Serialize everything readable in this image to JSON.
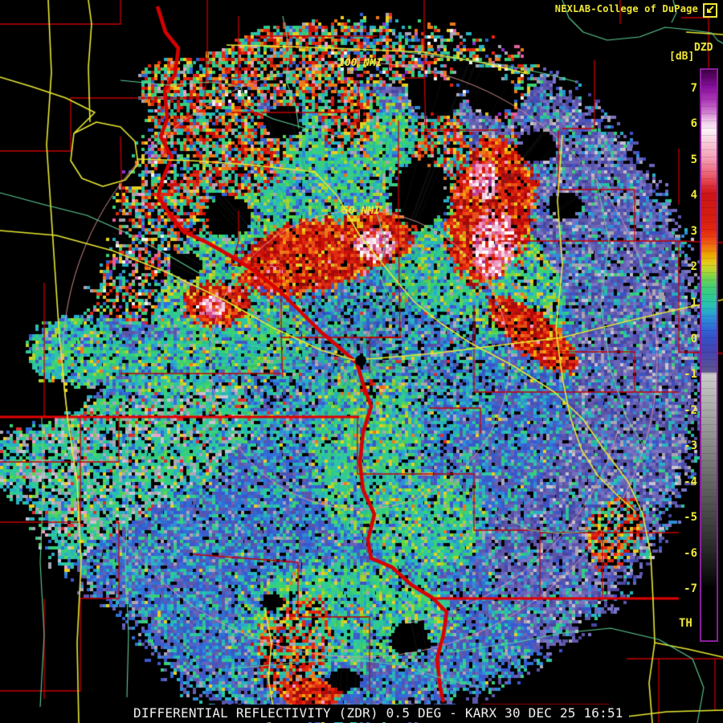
{
  "header": {
    "brand": "NEXLAB-College of DuPage",
    "brand_icon": "cursor-box-icon",
    "brand_color": "#f0e838"
  },
  "colorbar": {
    "title": "DZD",
    "units": "[dB]",
    "footer": "TH",
    "ticks": [
      "7",
      "6",
      "5",
      "4",
      "3",
      "2",
      "1",
      "0",
      "-1",
      "-2",
      "-3",
      "-4",
      "-5",
      "-6",
      "-7"
    ],
    "border_color": "#8a1f9e",
    "gradient": [
      {
        "p": 0,
        "c": "#3c0040"
      },
      {
        "p": 1.8,
        "c": "#6a0878"
      },
      {
        "p": 3.1,
        "c": "#8a10a0"
      },
      {
        "p": 5.6,
        "c": "#b040b8"
      },
      {
        "p": 7.5,
        "c": "#d080d0"
      },
      {
        "p": 9.0,
        "c": "#f0c8e8"
      },
      {
        "p": 10.6,
        "c": "#fdf2f8"
      },
      {
        "p": 12.4,
        "c": "#f8d0dc"
      },
      {
        "p": 15.6,
        "c": "#f49cb4"
      },
      {
        "p": 18.7,
        "c": "#e85868"
      },
      {
        "p": 20.6,
        "c": "#d82830"
      },
      {
        "p": 21.8,
        "c": "#cc1418"
      },
      {
        "p": 25.6,
        "c": "#d41c10"
      },
      {
        "p": 28.2,
        "c": "#e22810"
      },
      {
        "p": 30.0,
        "c": "#ee5014"
      },
      {
        "p": 31.3,
        "c": "#f07c0c"
      },
      {
        "p": 32.5,
        "c": "#eca800"
      },
      {
        "p": 33.8,
        "c": "#e4cc1c"
      },
      {
        "p": 35.1,
        "c": "#b8d82c"
      },
      {
        "p": 36.3,
        "c": "#78d44c"
      },
      {
        "p": 38.2,
        "c": "#40cc74"
      },
      {
        "p": 40.1,
        "c": "#2cc898"
      },
      {
        "p": 41.3,
        "c": "#28c0b4"
      },
      {
        "p": 42.5,
        "c": "#28a8cc"
      },
      {
        "p": 43.8,
        "c": "#2c88d8"
      },
      {
        "p": 45.6,
        "c": "#3064d4"
      },
      {
        "p": 46.9,
        "c": "#3452c8"
      },
      {
        "p": 49.4,
        "c": "#4444b0"
      },
      {
        "p": 52.0,
        "c": "#565098"
      },
      {
        "p": 53.0,
        "c": "#605890"
      },
      {
        "p": 53.2,
        "c": "#cccccc"
      },
      {
        "p": 59.6,
        "c": "#a8a8a8"
      },
      {
        "p": 65.8,
        "c": "#888888"
      },
      {
        "p": 72.1,
        "c": "#666666"
      },
      {
        "p": 78.3,
        "c": "#464646"
      },
      {
        "p": 84.6,
        "c": "#262626"
      },
      {
        "p": 89.6,
        "c": "#0a0a0a"
      },
      {
        "p": 90.8,
        "c": "#000000"
      },
      {
        "p": 100,
        "c": "#000000"
      }
    ]
  },
  "map": {
    "range_labels": [
      {
        "text": "100 NMI"
      },
      {
        "text": "50 NMI"
      }
    ],
    "colors": {
      "background": "#000000",
      "county_line": "#c40000",
      "state_line": "#e00000",
      "river": "#d80000",
      "major_road": "#e8e832",
      "minor_road": "#5ecf96",
      "range_ring": "#eea0a0",
      "label_yellow": "#f0e838"
    }
  },
  "caption": {
    "text": "DIFFERENTIAL REFLECTIVITY (ZDR) 0.5 DEG - KARX 30 DEC 25 16:51"
  },
  "radar": {
    "product": "DIFFERENTIAL REFLECTIVITY (ZDR)",
    "elevation": "0.5 DEG",
    "station": "KARX",
    "datetime": "30 DEC 25 16:51"
  },
  "palettes": {
    "inner": [
      [
        "#2f62d4",
        2.5
      ],
      [
        "#2f8cd8",
        2
      ],
      [
        "#28b2c4",
        2
      ],
      [
        "#2cc8a0",
        1.6
      ],
      [
        "#38d078",
        1.2
      ],
      [
        "#5a52aa",
        1.4
      ],
      [
        "#6e66bc",
        1
      ],
      [
        "#000000",
        1.6
      ],
      [
        "#b0aab8",
        0.7
      ],
      [
        "#e8d020",
        0.25
      ],
      [
        "#e03030",
        0.15
      ]
    ],
    "midnorth": [
      [
        "#38d078",
        3
      ],
      [
        "#2cc49c",
        2.5
      ],
      [
        "#5ad84e",
        1.5
      ],
      [
        "#aad62e",
        1.2
      ],
      [
        "#28aed0",
        1.5
      ],
      [
        "#2f6fd8",
        1.5
      ],
      [
        "#3b53c8",
        1.2
      ],
      [
        "#e8d020",
        0.6
      ],
      [
        "#f07818",
        0.4
      ],
      [
        "#b0aab8",
        0.5
      ],
      [
        "#000000",
        0.8
      ]
    ],
    "east": [
      [
        "#5c56aa",
        3
      ],
      [
        "#6a64b8",
        2.6
      ],
      [
        "#4a46a0",
        2
      ],
      [
        "#7a74c6",
        1.8
      ],
      [
        "#2f8cd8",
        1
      ],
      [
        "#28b2c4",
        1.2
      ],
      [
        "#aaa6b4",
        1.3
      ],
      [
        "#c8c4d2",
        0.5
      ],
      [
        "#38d078",
        0.5
      ],
      [
        "#2cc49c",
        0.6
      ],
      [
        "#000000",
        0.5
      ],
      [
        "#3b53c8",
        1.4
      ]
    ],
    "base": [
      [
        "#3b58cc",
        3
      ],
      [
        "#2f6fd8",
        2.4
      ],
      [
        "#5c56aa",
        2.2
      ],
      [
        "#28b2c4",
        1.6
      ],
      [
        "#2cc8a0",
        1.2
      ],
      [
        "#38d078",
        0.9
      ],
      [
        "#6a64b8",
        1.6
      ],
      [
        "#aaa6b4",
        0.6
      ],
      [
        "#000000",
        0.5
      ],
      [
        "#e8d020",
        0.12
      ],
      [
        "#2f8cd8",
        1.2
      ]
    ],
    "arm": [
      [
        "#2cc8a0",
        3
      ],
      [
        "#38d078",
        2
      ],
      [
        "#28b2c4",
        2
      ],
      [
        "#aaa6b4",
        1.6
      ],
      [
        "#2f6fd8",
        1.2
      ],
      [
        "#e8d020",
        0.5
      ],
      [
        "#e03030",
        0.45
      ],
      [
        "#f0a0c8",
        0.3
      ],
      [
        "#c8c4d2",
        0.8
      ],
      [
        "#000000",
        1.8
      ],
      [
        "#5ad84e",
        0.8
      ]
    ],
    "topmix": [
      [
        "#e02810",
        1.6
      ],
      [
        "#f07818",
        1.2
      ],
      [
        "#28b2c4",
        1.3
      ],
      [
        "#38d078",
        1.3
      ],
      [
        "#2f62d4",
        1
      ],
      [
        "#e060a0",
        0.7
      ],
      [
        "#f8f8f8",
        0.6
      ],
      [
        "#e8d020",
        1
      ],
      [
        "#aaa6b4",
        0.8
      ],
      [
        "#000000",
        7
      ],
      [
        "#8a2fd0",
        0.3
      ],
      [
        "#2cc49c",
        1
      ]
    ],
    "storm": [
      [
        "#cc1008",
        3
      ],
      [
        "#e22810",
        3
      ],
      [
        "#b00808",
        2
      ],
      [
        "#f05014",
        1.6
      ],
      [
        "#f07818",
        1.2
      ],
      [
        "#f0a400",
        0.7
      ],
      [
        "#e8d020",
        0.6
      ],
      [
        "#901010",
        1.2
      ],
      [
        "#000000",
        0.6
      ],
      [
        "#f0a0c8",
        0.25
      ]
    ],
    "stormlight": [
      [
        "#e22810",
        2
      ],
      [
        "#f07818",
        1.6
      ],
      [
        "#38d078",
        1.6
      ],
      [
        "#2cc49c",
        1.3
      ],
      [
        "#e8d020",
        1
      ],
      [
        "#000000",
        3.2
      ],
      [
        "#2f62d4",
        1
      ],
      [
        "#aaa6b4",
        0.7
      ],
      [
        "#f0a0c8",
        0.35
      ],
      [
        "#cc1008",
        1.4
      ],
      [
        "#28b2c4",
        1
      ]
    ],
    "core": [
      [
        "#ffffff",
        2
      ],
      [
        "#f8d2e2",
        2
      ],
      [
        "#f0a2c8",
        3
      ],
      [
        "#e874a0",
        2
      ],
      [
        "#d84e86",
        1.6
      ],
      [
        "#e22810",
        1.6
      ],
      [
        "#cc1008",
        1
      ],
      [
        "#b03a96",
        0.8
      ],
      [
        "#f05014",
        0.6
      ]
    ],
    "green": [
      [
        "#38d078",
        3
      ],
      [
        "#2cc8a0",
        2.6
      ],
      [
        "#5ad84e",
        1.4
      ],
      [
        "#aad62e",
        1.2
      ],
      [
        "#28aed0",
        1.8
      ],
      [
        "#2f8cd8",
        1.4
      ],
      [
        "#3b58cc",
        1.4
      ],
      [
        "#e8d020",
        0.5
      ],
      [
        "#f07818",
        0.25
      ],
      [
        "#aaa6b4",
        0.5
      ],
      [
        "#000000",
        0.4
      ],
      [
        "#2cc49c",
        1.5
      ]
    ]
  }
}
